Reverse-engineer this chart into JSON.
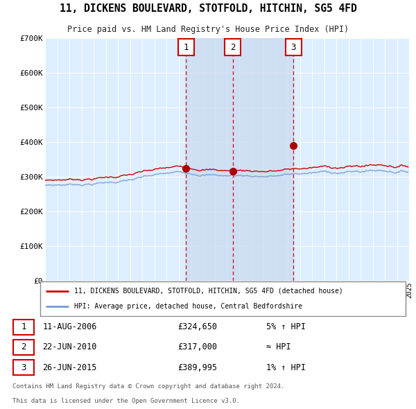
{
  "title": "11, DICKENS BOULEVARD, STOTFOLD, HITCHIN, SG5 4FD",
  "subtitle": "Price paid vs. HM Land Registry's House Price Index (HPI)",
  "legend_line1": "11, DICKENS BOULEVARD, STOTFOLD, HITCHIN, SG5 4FD (detached house)",
  "legend_line2": "HPI: Average price, detached house, Central Bedfordshire",
  "footer1": "Contains HM Land Registry data © Crown copyright and database right 2024.",
  "footer2": "This data is licensed under the Open Government Licence v3.0.",
  "transactions": [
    {
      "num": 1,
      "date": "11-AUG-2006",
      "price": "£324,650",
      "rel": "5% ↑ HPI",
      "year": 2006.61
    },
    {
      "num": 2,
      "date": "22-JUN-2010",
      "price": "£317,000",
      "rel": "≈ HPI",
      "year": 2010.47
    },
    {
      "num": 3,
      "date": "26-JUN-2015",
      "price": "£389,995",
      "rel": "1% ↑ HPI",
      "year": 2015.48
    }
  ],
  "actual_prices": [
    324650,
    317000,
    389995
  ],
  "hpi_color": "#7799cc",
  "price_color": "#cc0000",
  "dot_color": "#aa0000",
  "plot_bg": "#ddeeff",
  "grid_color": "#ffffff",
  "vline_color": "#cc0000",
  "ylim": [
    0,
    700000
  ],
  "yticks": [
    0,
    100000,
    200000,
    300000,
    400000,
    500000,
    600000,
    700000
  ],
  "ytick_labels": [
    "£0",
    "£100K",
    "£200K",
    "£300K",
    "£400K",
    "£500K",
    "£600K",
    "£700K"
  ],
  "xmin": 1995,
  "xmax": 2025
}
